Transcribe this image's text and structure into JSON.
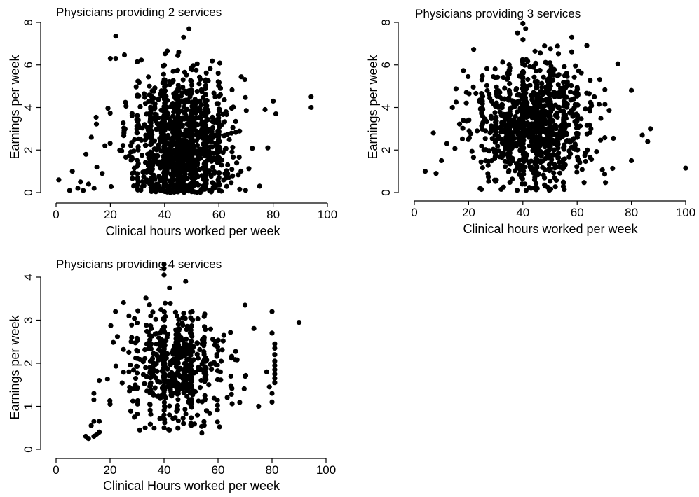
{
  "chart_data": [
    {
      "type": "scatter",
      "title": "Physicians providing 2 services",
      "xlabel": "Clinical hours worked per week",
      "ylabel": "Earnings per week",
      "xlim": [
        0,
        100
      ],
      "ylim": [
        0,
        8
      ],
      "xticks": [
        0,
        20,
        40,
        60,
        80,
        100
      ],
      "yticks": [
        0,
        2,
        4,
        6,
        8
      ],
      "grid": false,
      "legend": "none",
      "point_count": 1300,
      "cluster": {
        "x_center": 46,
        "x_spread": 9,
        "y_center": 2.3,
        "y_spread": 1.6,
        "y_min": 0,
        "y_max": 6.6
      },
      "points": [
        {
          "x": 22,
          "y": 7.35
        },
        {
          "x": 47,
          "y": 7.3
        },
        {
          "x": 49,
          "y": 7.7
        },
        {
          "x": 20,
          "y": 6.3
        },
        {
          "x": 22,
          "y": 6.3
        },
        {
          "x": 41,
          "y": 6.65
        },
        {
          "x": 94,
          "y": 4.5
        },
        {
          "x": 94,
          "y": 4.0
        },
        {
          "x": 80,
          "y": 4.3
        },
        {
          "x": 81,
          "y": 3.7
        },
        {
          "x": 77,
          "y": 3.9
        },
        {
          "x": 75,
          "y": 0.3
        },
        {
          "x": 78,
          "y": 2.1
        },
        {
          "x": 1,
          "y": 0.6
        },
        {
          "x": 5,
          "y": 0.1
        },
        {
          "x": 6,
          "y": 1.0
        },
        {
          "x": 8,
          "y": 0.2
        },
        {
          "x": 10,
          "y": 0.1
        },
        {
          "x": 12,
          "y": 0.4
        },
        {
          "x": 14,
          "y": 0.2
        },
        {
          "x": 9,
          "y": 0.5
        },
        {
          "x": 11,
          "y": 1.8
        },
        {
          "x": 15,
          "y": 1.2
        },
        {
          "x": 13,
          "y": 2.6
        },
        {
          "x": 18,
          "y": 2.2
        },
        {
          "x": 17,
          "y": 0.9
        }
      ]
    },
    {
      "type": "scatter",
      "title": "Physicians providing 3 services",
      "xlabel": "Clinical hours worked per week",
      "ylabel": "Earnings per week",
      "xlim": [
        0,
        100
      ],
      "ylim": [
        0,
        8
      ],
      "xticks": [
        0,
        20,
        40,
        60,
        80,
        100
      ],
      "yticks": [
        0,
        2,
        4,
        6,
        8
      ],
      "grid": false,
      "legend": "none",
      "point_count": 1100,
      "cluster": {
        "x_center": 44,
        "x_spread": 10,
        "y_center": 3.2,
        "y_spread": 1.4,
        "y_min": 0.1,
        "y_max": 7.2
      },
      "points": [
        {
          "x": 40,
          "y": 7.95
        },
        {
          "x": 41,
          "y": 7.7
        },
        {
          "x": 38,
          "y": 7.5
        },
        {
          "x": 58,
          "y": 7.3
        },
        {
          "x": 100,
          "y": 1.15
        },
        {
          "x": 87,
          "y": 3.0
        },
        {
          "x": 86,
          "y": 2.4
        },
        {
          "x": 84,
          "y": 2.7
        },
        {
          "x": 80,
          "y": 4.8
        },
        {
          "x": 75,
          "y": 6.05
        },
        {
          "x": 80,
          "y": 1.5
        },
        {
          "x": 4,
          "y": 1.0
        },
        {
          "x": 7,
          "y": 2.8
        },
        {
          "x": 8,
          "y": 0.9
        },
        {
          "x": 10,
          "y": 1.5
        },
        {
          "x": 14,
          "y": 4.0
        },
        {
          "x": 12,
          "y": 2.3
        },
        {
          "x": 43,
          "y": 0.2
        },
        {
          "x": 32,
          "y": 0.15
        }
      ]
    },
    {
      "type": "scatter",
      "title": "Physicians providing 4 services",
      "xlabel": "Clinical Hours worked per week",
      "ylabel": "Earnings per week",
      "xlim": [
        0,
        100
      ],
      "ylim": [
        0,
        4.5
      ],
      "xticks": [
        0,
        20,
        40,
        60,
        80,
        100
      ],
      "yticks": [
        0,
        1,
        2,
        3,
        4
      ],
      "grid": false,
      "legend": "none",
      "point_count": 560,
      "cluster": {
        "x_center": 45,
        "x_spread": 9,
        "y_center": 1.9,
        "y_spread": 0.65,
        "y_min": 0.45,
        "y_max": 3.6
      },
      "points": [
        {
          "x": 40,
          "y": 4.3
        },
        {
          "x": 40,
          "y": 4.2
        },
        {
          "x": 40,
          "y": 4.05
        },
        {
          "x": 48,
          "y": 3.9
        },
        {
          "x": 42,
          "y": 3.75
        },
        {
          "x": 90,
          "y": 2.95
        },
        {
          "x": 80,
          "y": 3.2
        },
        {
          "x": 70,
          "y": 3.35
        },
        {
          "x": 80,
          "y": 2.7
        },
        {
          "x": 81,
          "y": 2.45
        },
        {
          "x": 81,
          "y": 2.35
        },
        {
          "x": 81,
          "y": 2.2
        },
        {
          "x": 81,
          "y": 2.05
        },
        {
          "x": 81,
          "y": 1.95
        },
        {
          "x": 81,
          "y": 1.85
        },
        {
          "x": 81,
          "y": 1.75
        },
        {
          "x": 81,
          "y": 1.65
        },
        {
          "x": 81,
          "y": 1.55
        },
        {
          "x": 80,
          "y": 1.3
        },
        {
          "x": 80,
          "y": 1.1
        },
        {
          "x": 79,
          "y": 1.45
        },
        {
          "x": 75,
          "y": 1.0
        },
        {
          "x": 78,
          "y": 1.8
        },
        {
          "x": 11,
          "y": 0.3
        },
        {
          "x": 12,
          "y": 0.25
        },
        {
          "x": 13,
          "y": 0.55
        },
        {
          "x": 14,
          "y": 0.3
        },
        {
          "x": 15,
          "y": 0.35
        },
        {
          "x": 16,
          "y": 0.4
        },
        {
          "x": 14,
          "y": 0.65
        },
        {
          "x": 16,
          "y": 0.65
        },
        {
          "x": 14,
          "y": 1.15
        },
        {
          "x": 14,
          "y": 1.3
        },
        {
          "x": 16,
          "y": 1.6
        },
        {
          "x": 20,
          "y": 1.05
        },
        {
          "x": 22,
          "y": 3.2
        },
        {
          "x": 27,
          "y": 3.1
        },
        {
          "x": 28,
          "y": 2.6
        },
        {
          "x": 27,
          "y": 1.8
        },
        {
          "x": 31,
          "y": 0.45
        },
        {
          "x": 33,
          "y": 0.5
        },
        {
          "x": 40,
          "y": 0.5
        },
        {
          "x": 42,
          "y": 0.45
        },
        {
          "x": 54,
          "y": 0.38
        }
      ]
    }
  ]
}
